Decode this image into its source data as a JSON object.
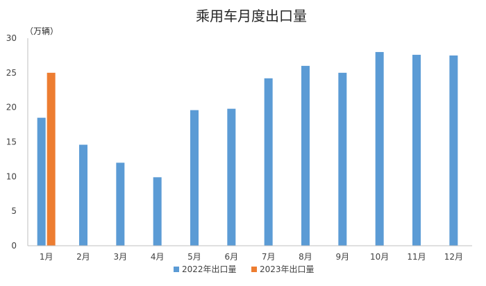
{
  "chart_data": {
    "type": "bar",
    "title": "乘用车月度出口量",
    "ylabel": "（万辆）",
    "xlabel": "",
    "ylim": [
      0,
      30
    ],
    "yticks": [
      0,
      5,
      10,
      15,
      20,
      25,
      30
    ],
    "categories": [
      "1月",
      "2月",
      "3月",
      "4月",
      "5月",
      "6月",
      "7月",
      "8月",
      "9月",
      "10月",
      "11月",
      "12月"
    ],
    "series": [
      {
        "name": "2022年出口量",
        "color": "#5b9bd5",
        "values": [
          18.5,
          14.6,
          12.0,
          9.9,
          19.6,
          19.8,
          24.2,
          26.0,
          25.0,
          28.0,
          27.6,
          27.5
        ]
      },
      {
        "name": "2023年出口量",
        "color": "#ed7d31",
        "values": [
          25.0,
          null,
          null,
          null,
          null,
          null,
          null,
          null,
          null,
          null,
          null,
          null
        ]
      }
    ],
    "grid": false,
    "legend_position": "bottom"
  }
}
